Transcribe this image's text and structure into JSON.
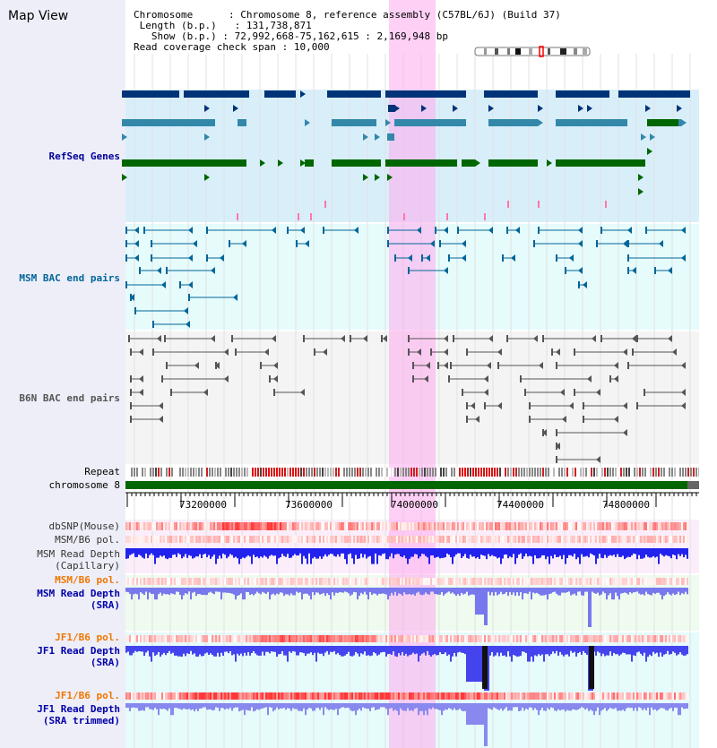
{
  "title": "Map View",
  "info": {
    "chromosome_label": "Chromosome",
    "chromosome_value": "Chromosome 8, reference assembly (C57BL/6J) (Build 37)",
    "length_label": "Length (b.p.)",
    "length_value": "131,738,871",
    "show_label": "Show (b.p.)",
    "show_value": "72,992,668-75,162,615 : 2,169,948 bp",
    "coverage_label": "Read coverage check span",
    "coverage_value": "10,000"
  },
  "tracks": {
    "refseq": "RefSeq Genes",
    "msm_bac": "MSM BAC end pairs",
    "b6n_bac": "B6N BAC end pairs",
    "repeat": "Repeat",
    "chromosome": "chromosome 8",
    "dbsnp": "dbSNP(Mouse)",
    "msm_b6_pol_1": "MSM/B6 pol.",
    "msm_depth_cap_1": "MSM Read Depth",
    "msm_depth_cap_2": "(Capillary)",
    "msm_b6_pol_2": "MSM/B6 pol.",
    "msm_depth_sra_1": "MSM Read Depth",
    "msm_depth_sra_2": "(SRA)",
    "jf1_b6_pol_1": "JF1/B6 pol.",
    "jf1_depth_sra_1": "JF1 Read Depth",
    "jf1_depth_sra_2": "(SRA)",
    "jf1_b6_pol_2": "JF1/B6 pol.",
    "jf1_depth_trim_1": "JF1 Read Depth",
    "jf1_depth_trim_2": "(SRA trimmed)"
  },
  "ruler": {
    "ticks": [
      "73200000",
      "73600000",
      "74000000",
      "74400000",
      "74800000"
    ]
  },
  "colors": {
    "refseq_label": "#000099",
    "msm_label": "#006699",
    "b6n_label": "#555555",
    "pol_label": "#ee7700",
    "depth_label": "#0000aa",
    "highlight": "#ffaaee",
    "gene_dark": "#003377",
    "gene_mid": "#3388aa",
    "gene_green": "#006600"
  }
}
